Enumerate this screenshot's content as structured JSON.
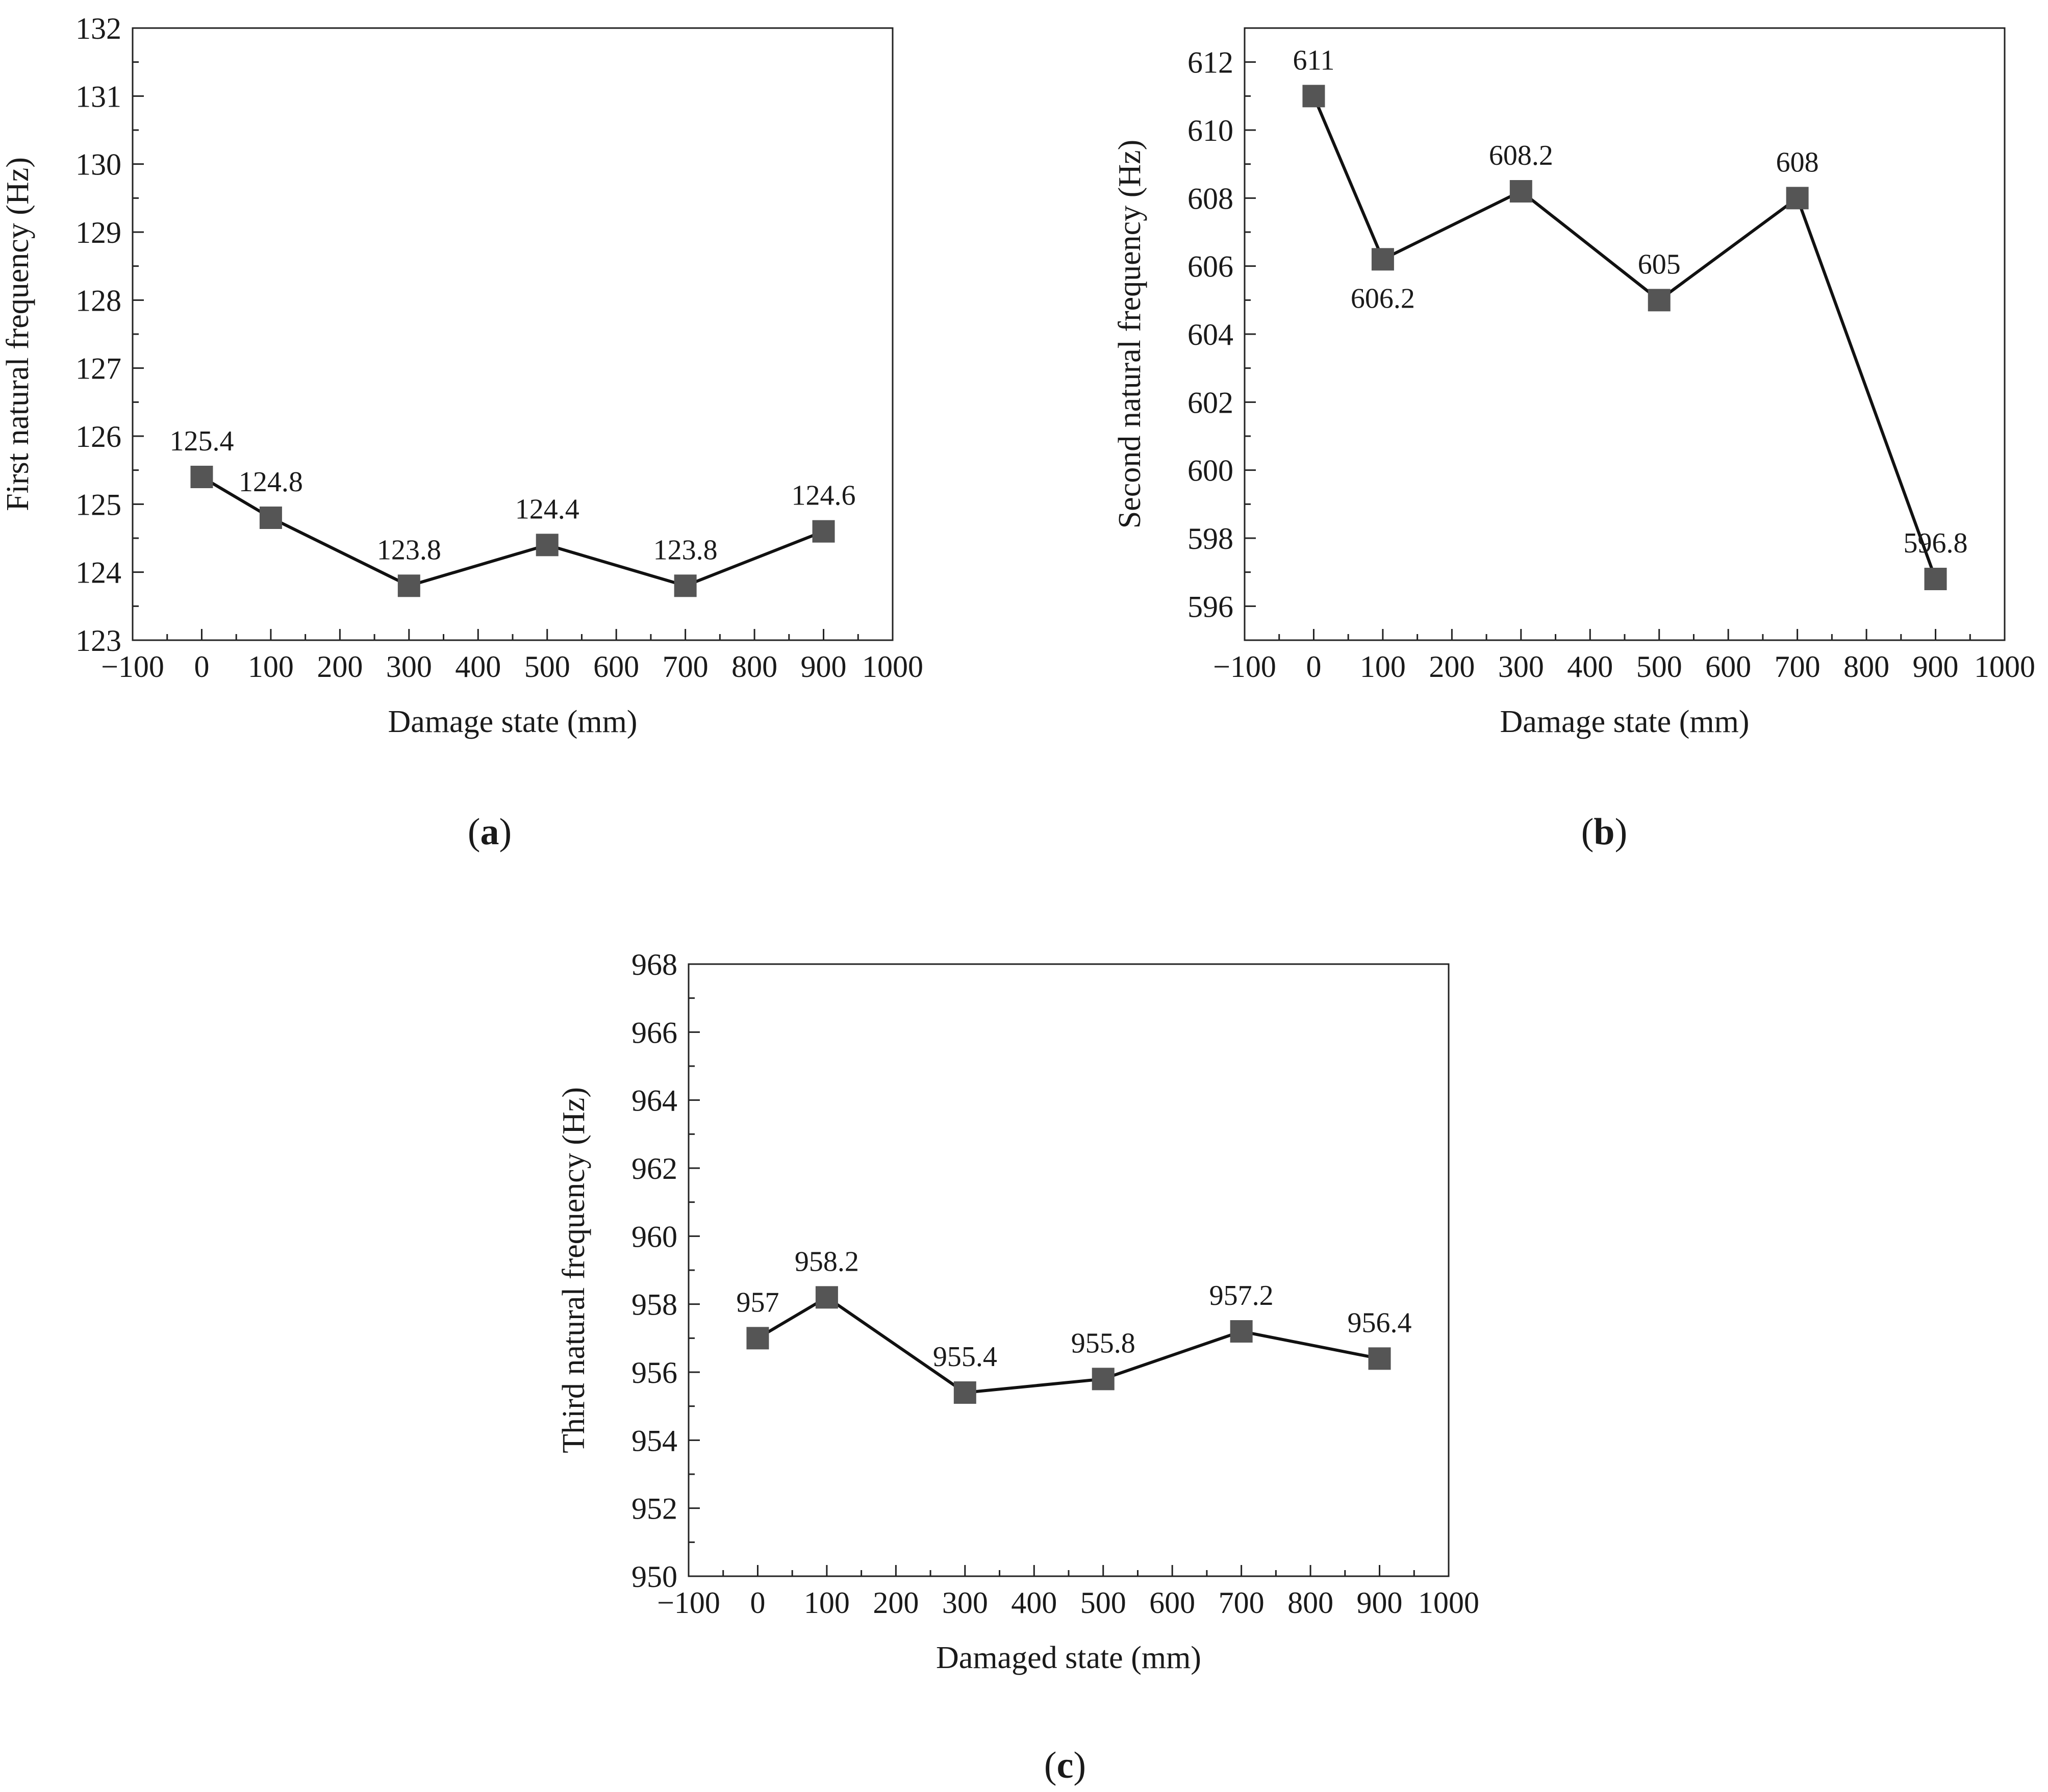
{
  "figure": {
    "marker_color": "#555555",
    "line_color": "#111111",
    "axis_color": "#222222"
  },
  "chart_data": [
    {
      "id": "a",
      "type": "line",
      "panel_label": "(a)",
      "panel_letter": "a",
      "title": "",
      "xlabel": "Damage state (mm)",
      "ylabel": "First natural frequency (Hz)",
      "xlim": [
        -100,
        1000
      ],
      "ylim": [
        123,
        132
      ],
      "xticks": [
        -100,
        0,
        100,
        200,
        300,
        400,
        500,
        600,
        700,
        800,
        900,
        1000
      ],
      "yticks": [
        123,
        124,
        125,
        126,
        127,
        128,
        129,
        130,
        131,
        132
      ],
      "xtick_labels": [
        "−100",
        "0",
        "100",
        "200",
        "300",
        "400",
        "500",
        "600",
        "700",
        "800",
        "900",
        "1000"
      ],
      "ytick_labels": [
        "123",
        "124",
        "125",
        "126",
        "127",
        "128",
        "129",
        "130",
        "131",
        "132"
      ],
      "x": [
        0,
        100,
        300,
        500,
        700,
        900
      ],
      "values": [
        125.4,
        124.8,
        123.8,
        124.4,
        123.8,
        124.6
      ],
      "labels": [
        "125.4",
        "124.8",
        "123.8",
        "124.4",
        "123.8",
        "124.6"
      ],
      "label_position": "above"
    },
    {
      "id": "b",
      "type": "line",
      "panel_label": "(b)",
      "panel_letter": "b",
      "title": "",
      "xlabel": "Damage state (mm)",
      "ylabel": "Second natural frequency (Hz)",
      "xlim": [
        -100,
        1000
      ],
      "ylim": [
        595,
        613
      ],
      "xticks": [
        -100,
        0,
        100,
        200,
        300,
        400,
        500,
        600,
        700,
        800,
        900,
        1000
      ],
      "yticks": [
        596,
        598,
        600,
        602,
        604,
        606,
        608,
        610,
        612
      ],
      "xtick_labels": [
        "−100",
        "0",
        "100",
        "200",
        "300",
        "400",
        "500",
        "600",
        "700",
        "800",
        "900",
        "1000"
      ],
      "ytick_labels": [
        "596",
        "598",
        "600",
        "602",
        "604",
        "606",
        "608",
        "610",
        "612"
      ],
      "x": [
        0,
        100,
        300,
        500,
        700,
        900
      ],
      "values": [
        611,
        606.2,
        608.2,
        605,
        608,
        596.8
      ],
      "labels": [
        "611",
        "606.2",
        "608.2",
        "605",
        "608",
        "596.8"
      ],
      "label_positions": [
        "above",
        "below",
        "above",
        "above",
        "above",
        "above"
      ]
    },
    {
      "id": "c",
      "type": "line",
      "panel_label": "(c)",
      "panel_letter": "c",
      "title": "",
      "xlabel": "Damaged state (mm)",
      "ylabel": "Third natural frequency (Hz)",
      "xlim": [
        -100,
        1000
      ],
      "ylim": [
        950,
        968
      ],
      "xticks": [
        -100,
        0,
        100,
        200,
        300,
        400,
        500,
        600,
        700,
        800,
        900,
        1000
      ],
      "yticks": [
        950,
        952,
        954,
        956,
        958,
        960,
        962,
        964,
        966,
        968
      ],
      "xtick_labels": [
        "−100",
        "0",
        "100",
        "200",
        "300",
        "400",
        "500",
        "600",
        "700",
        "800",
        "900",
        "1000"
      ],
      "ytick_labels": [
        "950",
        "952",
        "954",
        "956",
        "958",
        "960",
        "962",
        "964",
        "966",
        "968"
      ],
      "x": [
        0,
        100,
        300,
        500,
        700,
        900
      ],
      "values": [
        957,
        958.2,
        955.4,
        955.8,
        957.2,
        956.4
      ],
      "labels": [
        "957",
        "958.2",
        "955.4",
        "955.8",
        "957.2",
        "956.4"
      ],
      "label_position": "above"
    }
  ]
}
